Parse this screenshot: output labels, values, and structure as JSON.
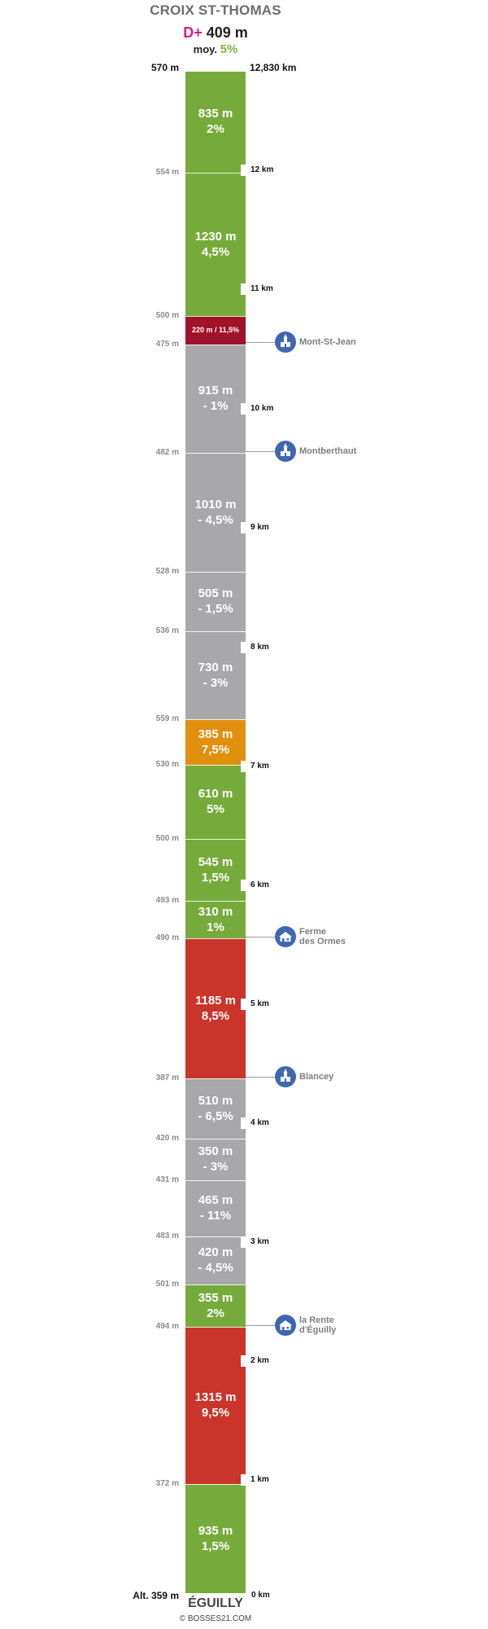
{
  "header": {
    "title": "CROIX ST-THOMAS",
    "dplus_label": "D+",
    "dplus_value": "409 m",
    "avg_label": "moy.",
    "avg_value": "5%"
  },
  "top": {
    "altitude": "570 m",
    "distance": "12,830 km"
  },
  "bottom": {
    "altitude": "Alt. 359 m",
    "distance": "0 km",
    "end_name": "ÉGUILLY"
  },
  "footer": {
    "copyright": "© BOSSES21.COM"
  },
  "segments": [
    {
      "length": "835 m",
      "grade": "2%",
      "color": "#76ab3b"
    },
    {
      "length": "1230 m",
      "grade": "4,5%",
      "color": "#76ab3b"
    },
    {
      "length": "220 m / 11,5%",
      "grade": "",
      "color": "#a0132a",
      "small": true
    },
    {
      "length": "915 m",
      "grade": "- 1%",
      "color": "#a8a8ab"
    },
    {
      "length": "1010 m",
      "grade": "- 4,5%",
      "color": "#a8a8ab"
    },
    {
      "length": "505 m",
      "grade": "- 1,5%",
      "color": "#a8a8ab"
    },
    {
      "length": "730 m",
      "grade": "- 3%",
      "color": "#a8a8ab"
    },
    {
      "length": "385 m",
      "grade": "7,5%",
      "color": "#e0900d"
    },
    {
      "length": "610 m",
      "grade": "5%",
      "color": "#76ab3b"
    },
    {
      "length": "545 m",
      "grade": "1,5%",
      "color": "#76ab3b"
    },
    {
      "length": "310 m",
      "grade": "1%",
      "color": "#76ab3b"
    },
    {
      "length": "1185 m",
      "grade": "8,5%",
      "color": "#c9342b"
    },
    {
      "length": "510 m",
      "grade": "- 6,5%",
      "color": "#a8a8ab"
    },
    {
      "length": "350 m",
      "grade": "- 3%",
      "color": "#a8a8ab"
    },
    {
      "length": "465 m",
      "grade": "- 11%",
      "color": "#a8a8ab"
    },
    {
      "length": "420 m",
      "grade": "- 4,5%",
      "color": "#a8a8ab"
    },
    {
      "length": "355 m",
      "grade": "2%",
      "color": "#76ab3b"
    },
    {
      "length": "1315 m",
      "grade": "9,5%",
      "color": "#c9342b"
    },
    {
      "length": "935 m",
      "grade": "1,5%",
      "color": "#76ab3b"
    }
  ],
  "boundary_altitudes": [
    "554 m",
    "500 m",
    "475 m",
    "482 m",
    "528 m",
    "536 m",
    "559 m",
    "530 m",
    "500 m",
    "493 m",
    "490 m",
    "387 m",
    "420 m",
    "431 m",
    "483 m",
    "501 m",
    "494 m",
    "372 m"
  ],
  "km_markers": [
    "12 km",
    "11 km",
    "10 km",
    "9 km",
    "8 km",
    "7 km",
    "6 km",
    "5 km",
    "4 km",
    "3 km",
    "2 km",
    "1 km"
  ],
  "pois": [
    {
      "label": "Mont-St-Jean",
      "icon": "church-icon"
    },
    {
      "label": "Montberthaut",
      "icon": "church-icon"
    },
    {
      "label": "Ferme\ndes Ormes",
      "icon": "farm-icon"
    },
    {
      "label": "Blancey",
      "icon": "church-icon"
    },
    {
      "label": "la Rente\nd'Éguilly",
      "icon": "farm-icon"
    }
  ]
}
